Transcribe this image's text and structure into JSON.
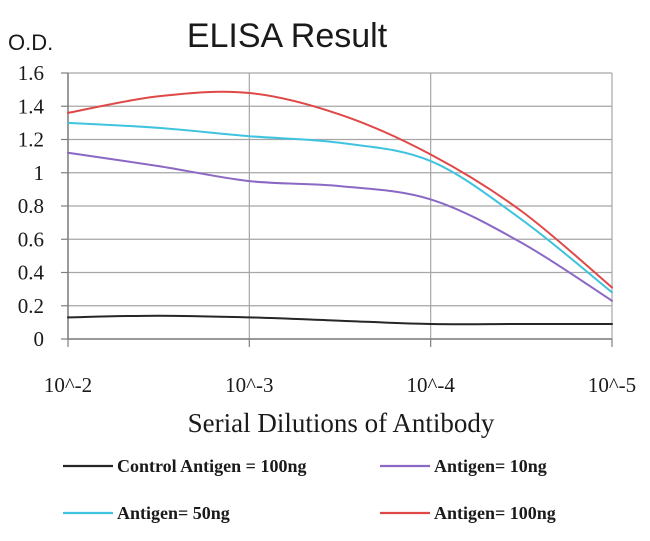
{
  "chart_data": {
    "type": "line",
    "title": "ELISA Result",
    "ylabel": "O.D.",
    "xlabel": "Serial Dilutions of Antibody",
    "categories": [
      "10^-2",
      "10^-3",
      "10^-4",
      "10^-5"
    ],
    "x": [
      -2,
      -2.5,
      -3,
      -3.5,
      -4,
      -4.5,
      -5
    ],
    "ylim": [
      0,
      1.6
    ],
    "yticks": [
      "0",
      "0.2",
      "0.4",
      "0.6",
      "0.8",
      "1",
      "1.2",
      "1.4",
      "1.6"
    ],
    "grid": true,
    "legend_position": "bottom",
    "series": [
      {
        "name": "Control Antigen = 100ng",
        "color": "#262626",
        "values": [
          0.13,
          0.14,
          0.13,
          0.11,
          0.09,
          0.09,
          0.09
        ]
      },
      {
        "name": "Antigen= 10ng",
        "color": "#8a68c4",
        "values": [
          1.12,
          1.04,
          0.95,
          0.92,
          0.84,
          0.58,
          0.23
        ]
      },
      {
        "name": "Antigen= 50ng",
        "color": "#3fc3df",
        "values": [
          1.3,
          1.27,
          1.22,
          1.18,
          1.07,
          0.72,
          0.28
        ]
      },
      {
        "name": "Antigen= 100ng",
        "color": "#e04848",
        "values": [
          1.36,
          1.46,
          1.48,
          1.35,
          1.11,
          0.77,
          0.31
        ]
      }
    ]
  }
}
